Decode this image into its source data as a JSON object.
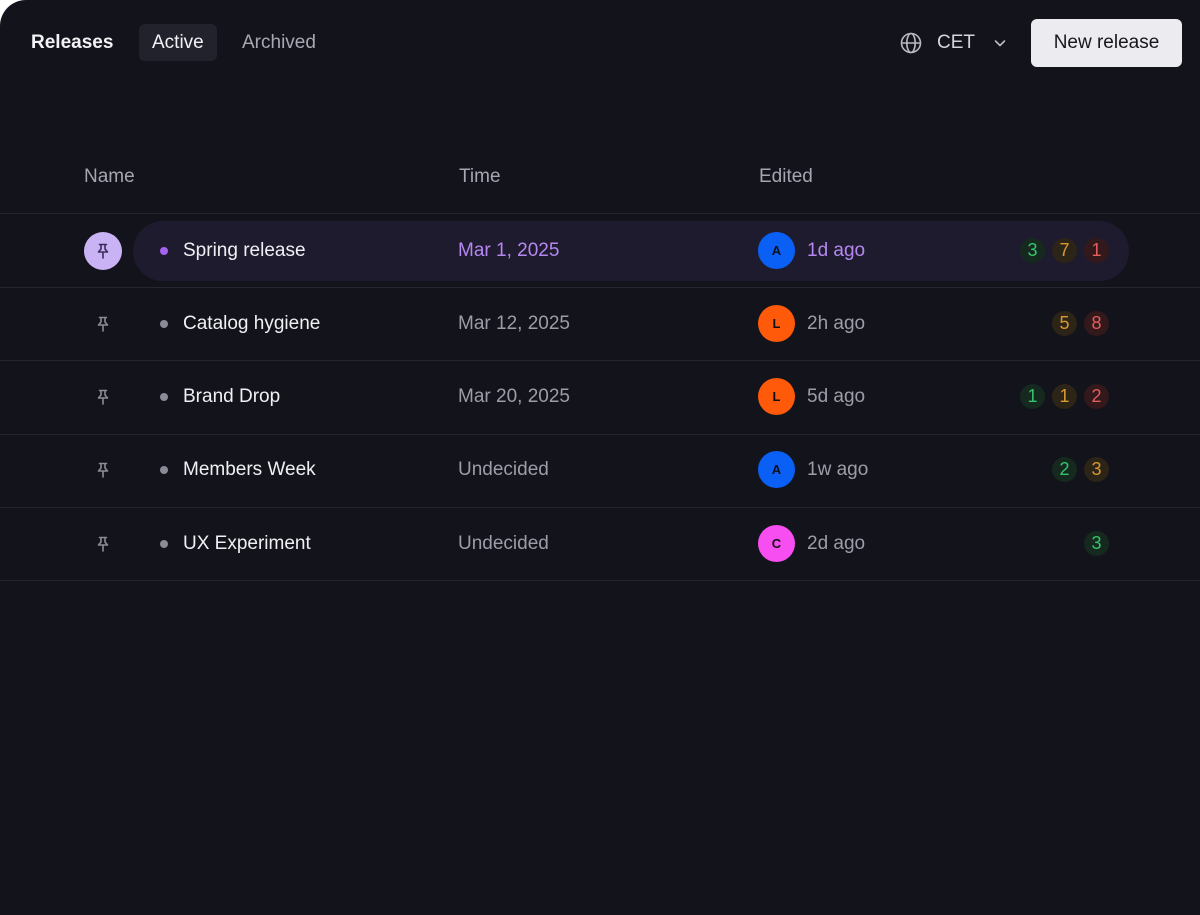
{
  "header": {
    "title": "Releases",
    "tabs": [
      {
        "label": "Active",
        "active": true
      },
      {
        "label": "Archived",
        "active": false
      }
    ],
    "timezone": {
      "icon": "globe-icon",
      "value": "CET"
    },
    "new_button_label": "New release"
  },
  "table": {
    "columns": [
      "Name",
      "Time",
      "Edited"
    ],
    "rows": [
      {
        "pinned": true,
        "name": "Spring release",
        "time": "Mar 1, 2025",
        "avatar": {
          "initial": "A",
          "color": "#0a5ff5"
        },
        "edited": "1d ago",
        "counts": {
          "green": "3",
          "yellow": "7",
          "red": "1"
        }
      },
      {
        "pinned": false,
        "name": "Catalog hygiene",
        "time": "Mar 12, 2025",
        "avatar": {
          "initial": "L",
          "color": "#ff5a0a"
        },
        "edited": "2h ago",
        "counts": {
          "yellow": "5",
          "red": "8"
        }
      },
      {
        "pinned": false,
        "name": "Brand Drop",
        "time": "Mar 20, 2025",
        "avatar": {
          "initial": "L",
          "color": "#ff5a0a"
        },
        "edited": "5d ago",
        "counts": {
          "green": "1",
          "yellow": "1",
          "red": "2"
        }
      },
      {
        "pinned": false,
        "name": "Members Week",
        "time": "Undecided",
        "avatar": {
          "initial": "A",
          "color": "#0a5ff5"
        },
        "edited": "1w ago",
        "counts": {
          "green": "2",
          "yellow": "3"
        }
      },
      {
        "pinned": false,
        "name": "UX Experiment",
        "time": "Undecided",
        "avatar": {
          "initial": "C",
          "color": "#f74ef2"
        },
        "edited": "2d ago",
        "counts": {
          "green": "3"
        }
      }
    ]
  },
  "colors": {
    "background": "#13131b",
    "accent": "#b488f0",
    "count_green": "#35c46c",
    "count_yellow": "#d69a2e",
    "count_red": "#e35d5d"
  }
}
